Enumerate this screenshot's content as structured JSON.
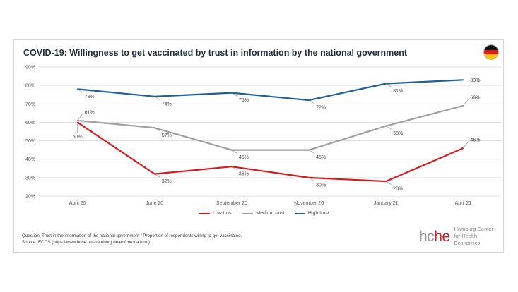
{
  "title": "COVID-19: Willingness to get vaccinated by trust in information by the national government",
  "footnote": {
    "question": "Question: Trust in the information of the national government / Proportion of respondents willing to get vaccinated.",
    "source": "Source: ECOS (https://www.hche.uni-hamburg.de/en/corona.html)"
  },
  "brand": {
    "logo_part1": "hc",
    "logo_part2": "he",
    "name_line1": "Hamburg Center",
    "name_line2": "for Health Economics"
  },
  "flag_icon": "germany-flag-icon",
  "colors": {
    "low": "#d7191c",
    "medium": "#a0a0a0",
    "high": "#1f5f99",
    "brand_red": "#cc1f2d",
    "brand_gray": "#999999"
  },
  "chart_data": {
    "type": "line",
    "categories": [
      "April 20",
      "June 20",
      "September 20",
      "November 20",
      "January 21",
      "April 21"
    ],
    "series": [
      {
        "name": "Low trust",
        "values": [
          60,
          32,
          36,
          30,
          28,
          46
        ],
        "labels": [
          "60%",
          "32%",
          "36%",
          "30%",
          "28%",
          "46%"
        ]
      },
      {
        "name": "Medium trust",
        "values": [
          61,
          57,
          45,
          45,
          58,
          69
        ],
        "labels": [
          "61%",
          "57%",
          "45%",
          "45%",
          "58%",
          "69%"
        ]
      },
      {
        "name": "High trust",
        "values": [
          78,
          74,
          76,
          72,
          81,
          83
        ],
        "labels": [
          "78%",
          "74%",
          "76%",
          "72%",
          "81%",
          "83%"
        ]
      }
    ],
    "ylim": [
      20,
      90
    ],
    "yticks": [
      20,
      30,
      40,
      50,
      60,
      70,
      80,
      90
    ],
    "ytick_labels": [
      "20%",
      "30%",
      "40%",
      "50%",
      "60%",
      "70%",
      "80%",
      "90%"
    ],
    "grid": true,
    "legend": "bottom-center"
  }
}
